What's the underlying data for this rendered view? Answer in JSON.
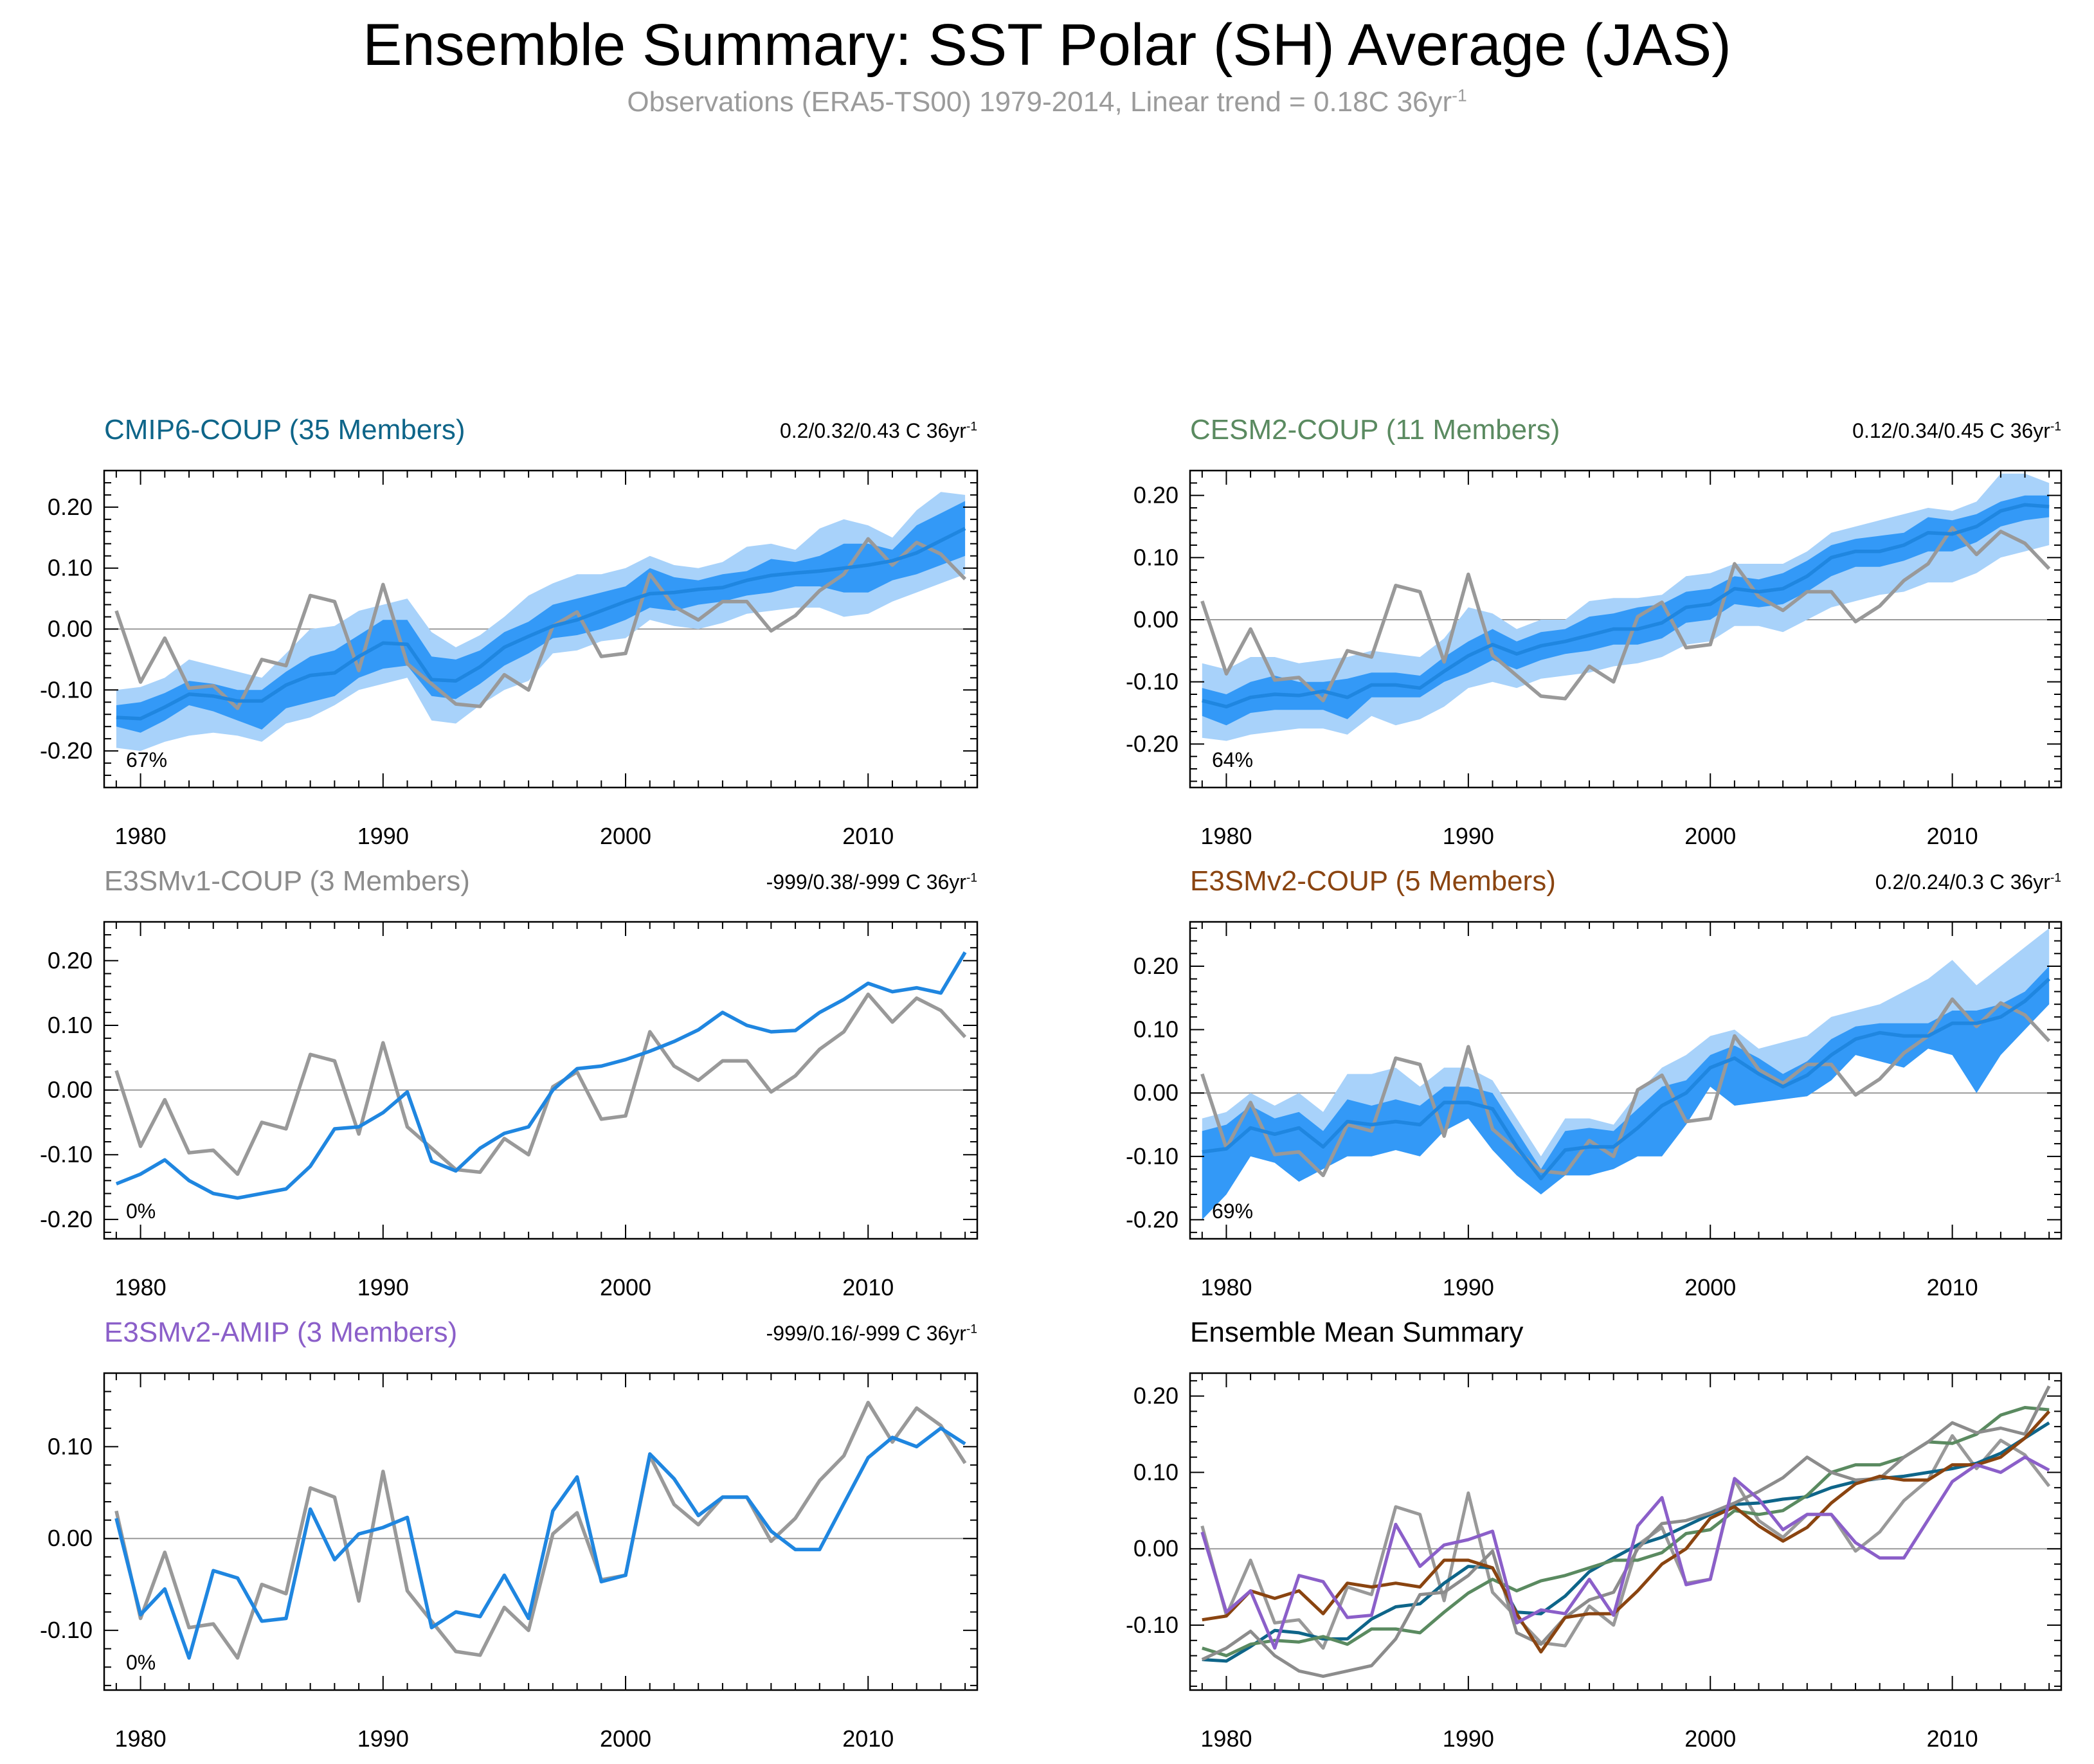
{
  "title": "Ensemble Summary: SST Polar (SH) Average (JAS)",
  "subtitle": {
    "text": "Observations (ERA5-TS00) 1979-2014, Linear trend = 0.18C 36yr",
    "sup": "-1"
  },
  "colors": {
    "obs": "#999999",
    "model_line": "#1f86e0",
    "band_outer": "#a8d2fa",
    "band_inner": "#3399f7",
    "cmip6": "#0e6589",
    "cesm2": "#5a8a60",
    "e3smv1": "#8c8c8c",
    "e3smv2_coup": "#8a4410",
    "e3smv2_amip": "#8b5fc9"
  },
  "chart_data": [
    {
      "type": "line",
      "id": "cmip6",
      "title": "CMIP6-COUP (35 Members)",
      "title_color": "#0e6589",
      "trend": "0.2/0.32/0.43 C 36yr",
      "trend_sup": "-1",
      "percent": "67%",
      "ylim": [
        -0.26,
        0.26
      ],
      "yticks": [
        "-0.20",
        "-0.10",
        "0.00",
        "0.10",
        "0.20"
      ],
      "ytick_values": [
        -0.2,
        -0.1,
        0.0,
        0.1,
        0.2
      ],
      "xticks": [
        "1980",
        "1990",
        "2000",
        "2010"
      ],
      "xtick_values": [
        1980,
        1990,
        2000,
        2010
      ],
      "xlim": [
        1978.5,
        2014.5
      ],
      "ensemble_mean": [
        -0.145,
        -0.147,
        -0.128,
        -0.107,
        -0.11,
        -0.118,
        -0.118,
        -0.092,
        -0.076,
        -0.072,
        -0.045,
        -0.023,
        -0.025,
        -0.083,
        -0.085,
        -0.062,
        -0.03,
        -0.012,
        0.005,
        0.015,
        0.03,
        0.045,
        0.058,
        0.06,
        0.065,
        0.068,
        0.08,
        0.088,
        0.092,
        0.095,
        0.1,
        0.105,
        0.112,
        0.125,
        0.145,
        0.165
      ],
      "inner_upper": [
        -0.125,
        -0.12,
        -0.105,
        -0.085,
        -0.09,
        -0.1,
        -0.1,
        -0.07,
        -0.045,
        -0.035,
        -0.01,
        0.015,
        0.015,
        -0.045,
        -0.05,
        -0.035,
        -0.005,
        0.012,
        0.04,
        0.05,
        0.06,
        0.07,
        0.1,
        0.085,
        0.08,
        0.09,
        0.095,
        0.115,
        0.11,
        0.12,
        0.14,
        0.14,
        0.13,
        0.17,
        0.19,
        0.21
      ],
      "inner_lower": [
        -0.16,
        -0.17,
        -0.15,
        -0.125,
        -0.135,
        -0.15,
        -0.165,
        -0.13,
        -0.12,
        -0.11,
        -0.08,
        -0.065,
        -0.06,
        -0.11,
        -0.115,
        -0.09,
        -0.06,
        -0.04,
        -0.015,
        -0.01,
        0.0,
        0.015,
        0.035,
        0.03,
        0.04,
        0.045,
        0.055,
        0.06,
        0.07,
        0.07,
        0.06,
        0.06,
        0.08,
        0.09,
        0.105,
        0.12
      ],
      "outer_upper": [
        -0.1,
        -0.095,
        -0.08,
        -0.05,
        -0.06,
        -0.07,
        -0.08,
        -0.04,
        0.0,
        0.005,
        0.03,
        0.04,
        0.05,
        -0.005,
        -0.03,
        -0.01,
        0.02,
        0.055,
        0.075,
        0.09,
        0.09,
        0.1,
        0.12,
        0.105,
        0.1,
        0.11,
        0.135,
        0.14,
        0.13,
        0.165,
        0.18,
        0.17,
        0.15,
        0.195,
        0.225,
        0.22
      ],
      "outer_lower": [
        -0.195,
        -0.2,
        -0.185,
        -0.175,
        -0.17,
        -0.175,
        -0.185,
        -0.155,
        -0.145,
        -0.125,
        -0.1,
        -0.09,
        -0.08,
        -0.15,
        -0.155,
        -0.125,
        -0.1,
        -0.085,
        -0.04,
        -0.035,
        -0.02,
        -0.015,
        0.015,
        0.005,
        0.0,
        0.01,
        0.025,
        0.03,
        0.035,
        0.035,
        0.02,
        0.025,
        0.045,
        0.06,
        0.075,
        0.09
      ],
      "observations": [
        0.03,
        -0.087,
        -0.015,
        -0.097,
        -0.093,
        -0.13,
        -0.05,
        -0.06,
        0.055,
        0.045,
        -0.068,
        0.073,
        -0.057,
        -0.09,
        -0.123,
        -0.127,
        -0.075,
        -0.1,
        0.005,
        0.028,
        -0.045,
        -0.04,
        0.09,
        0.037,
        0.015,
        0.045,
        0.045,
        -0.003,
        0.022,
        0.063,
        0.09,
        0.148,
        0.105,
        0.142,
        0.123,
        0.082
      ]
    },
    {
      "type": "line",
      "id": "cesm2",
      "title": "CESM2-COUP (11 Members)",
      "title_color": "#5a8a60",
      "trend": "0.12/0.34/0.45 C 36yr",
      "trend_sup": "-1",
      "percent": "64%",
      "ylim": [
        -0.27,
        0.24
      ],
      "yticks": [
        "-0.20",
        "-0.10",
        "0.00",
        "0.10",
        "0.20"
      ],
      "ytick_values": [
        -0.2,
        -0.1,
        0.0,
        0.1,
        0.2
      ],
      "xticks": [
        "1980",
        "1990",
        "2000",
        "2010"
      ],
      "xtick_values": [
        1980,
        1990,
        2000,
        2010
      ],
      "xlim": [
        1978.5,
        2014.5
      ],
      "ensemble_mean": [
        -0.13,
        -0.14,
        -0.125,
        -0.12,
        -0.122,
        -0.115,
        -0.125,
        -0.105,
        -0.105,
        -0.11,
        -0.083,
        -0.058,
        -0.04,
        -0.055,
        -0.042,
        -0.035,
        -0.025,
        -0.015,
        -0.015,
        -0.005,
        0.02,
        0.025,
        0.05,
        0.045,
        0.05,
        0.07,
        0.1,
        0.11,
        0.11,
        0.12,
        0.14,
        0.138,
        0.15,
        0.175,
        0.185,
        0.182
      ],
      "inner_upper": [
        -0.11,
        -0.12,
        -0.1,
        -0.09,
        -0.1,
        -0.1,
        -0.095,
        -0.085,
        -0.085,
        -0.09,
        -0.06,
        -0.035,
        -0.015,
        -0.035,
        -0.02,
        -0.015,
        0.005,
        0.01,
        0.02,
        0.025,
        0.045,
        0.05,
        0.07,
        0.065,
        0.075,
        0.095,
        0.12,
        0.13,
        0.135,
        0.14,
        0.165,
        0.16,
        0.17,
        0.19,
        0.2,
        0.2
      ],
      "inner_lower": [
        -0.155,
        -0.17,
        -0.15,
        -0.145,
        -0.145,
        -0.145,
        -0.16,
        -0.125,
        -0.125,
        -0.125,
        -0.1,
        -0.085,
        -0.065,
        -0.08,
        -0.065,
        -0.055,
        -0.05,
        -0.04,
        -0.04,
        -0.03,
        -0.005,
        0.0,
        0.025,
        0.02,
        0.025,
        0.045,
        0.07,
        0.085,
        0.085,
        0.095,
        0.11,
        0.11,
        0.125,
        0.15,
        0.16,
        0.165
      ],
      "outer_upper": [
        -0.07,
        -0.08,
        -0.06,
        -0.06,
        -0.07,
        -0.065,
        -0.06,
        -0.05,
        -0.055,
        -0.06,
        -0.03,
        0.02,
        0.01,
        -0.015,
        0.0,
        0.0,
        0.03,
        0.035,
        0.035,
        0.04,
        0.07,
        0.075,
        0.09,
        0.09,
        0.09,
        0.11,
        0.14,
        0.15,
        0.16,
        0.17,
        0.18,
        0.175,
        0.19,
        0.235,
        0.235,
        0.22
      ],
      "outer_lower": [
        -0.19,
        -0.195,
        -0.185,
        -0.18,
        -0.175,
        -0.175,
        -0.185,
        -0.155,
        -0.17,
        -0.16,
        -0.14,
        -0.11,
        -0.1,
        -0.11,
        -0.095,
        -0.09,
        -0.085,
        -0.075,
        -0.07,
        -0.06,
        -0.04,
        -0.035,
        -0.01,
        -0.01,
        -0.02,
        0.0,
        0.02,
        0.03,
        0.04,
        0.045,
        0.06,
        0.06,
        0.075,
        0.1,
        0.11,
        0.12
      ],
      "observations": [
        0.03,
        -0.087,
        -0.015,
        -0.097,
        -0.093,
        -0.13,
        -0.05,
        -0.06,
        0.055,
        0.045,
        -0.068,
        0.073,
        -0.057,
        -0.09,
        -0.123,
        -0.127,
        -0.075,
        -0.1,
        0.005,
        0.028,
        -0.045,
        -0.04,
        0.09,
        0.037,
        0.015,
        0.045,
        0.045,
        -0.003,
        0.022,
        0.063,
        0.09,
        0.148,
        0.105,
        0.142,
        0.123,
        0.082
      ]
    },
    {
      "type": "line",
      "id": "e3smv1",
      "title": "E3SMv1-COUP (3 Members)",
      "title_color": "#8c8c8c",
      "trend": "-999/0.38/-999 C 36yr",
      "trend_sup": "-1",
      "percent": "0%",
      "ylim": [
        -0.23,
        0.26
      ],
      "yticks": [
        "-0.20",
        "-0.10",
        "0.00",
        "0.10",
        "0.20"
      ],
      "ytick_values": [
        -0.2,
        -0.1,
        0.0,
        0.1,
        0.2
      ],
      "xticks": [
        "1980",
        "1990",
        "2000",
        "2010"
      ],
      "xtick_values": [
        1980,
        1990,
        2000,
        2010
      ],
      "xlim": [
        1978.5,
        2014.5
      ],
      "ensemble_mean": [
        -0.145,
        -0.13,
        -0.108,
        -0.14,
        -0.16,
        -0.167,
        -0.16,
        -0.153,
        -0.118,
        -0.06,
        -0.057,
        -0.035,
        -0.003,
        -0.11,
        -0.125,
        -0.09,
        -0.067,
        -0.057,
        0.0,
        0.033,
        0.037,
        0.047,
        0.06,
        0.075,
        0.093,
        0.12,
        0.1,
        0.09,
        0.092,
        0.12,
        0.14,
        0.165,
        0.152,
        0.158,
        0.15,
        0.213
      ],
      "observations": [
        0.03,
        -0.087,
        -0.015,
        -0.097,
        -0.093,
        -0.13,
        -0.05,
        -0.06,
        0.055,
        0.045,
        -0.068,
        0.073,
        -0.057,
        -0.09,
        -0.123,
        -0.127,
        -0.075,
        -0.1,
        0.005,
        0.028,
        -0.045,
        -0.04,
        0.09,
        0.037,
        0.015,
        0.045,
        0.045,
        -0.003,
        0.022,
        0.063,
        0.09,
        0.148,
        0.105,
        0.142,
        0.123,
        0.082
      ]
    },
    {
      "type": "line",
      "id": "e3smv2_coup",
      "title": "E3SMv2-COUP (5 Members)",
      "title_color": "#8a4410",
      "trend": "0.2/0.24/0.3 C 36yr",
      "trend_sup": "-1",
      "percent": "69%",
      "ylim": [
        -0.23,
        0.27
      ],
      "yticks": [
        "-0.20",
        "-0.10",
        "0.00",
        "0.10",
        "0.20"
      ],
      "ytick_values": [
        -0.2,
        -0.1,
        0.0,
        0.1,
        0.2
      ],
      "xticks": [
        "1980",
        "1990",
        "2000",
        "2010"
      ],
      "xtick_values": [
        1980,
        1990,
        2000,
        2010
      ],
      "xlim": [
        1978.5,
        2014.5
      ],
      "ensemble_mean": [
        -0.093,
        -0.088,
        -0.055,
        -0.065,
        -0.055,
        -0.085,
        -0.045,
        -0.05,
        -0.045,
        -0.05,
        -0.015,
        -0.015,
        -0.025,
        -0.085,
        -0.135,
        -0.09,
        -0.085,
        -0.085,
        -0.055,
        -0.02,
        0.0,
        0.04,
        0.055,
        0.03,
        0.01,
        0.028,
        0.06,
        0.085,
        0.095,
        0.09,
        0.09,
        0.11,
        0.11,
        0.12,
        0.145,
        0.18
      ],
      "inner_upper": [
        -0.06,
        -0.05,
        -0.02,
        -0.04,
        -0.03,
        -0.06,
        -0.01,
        -0.02,
        -0.01,
        -0.02,
        0.01,
        0.01,
        0.0,
        -0.06,
        -0.12,
        -0.06,
        -0.055,
        -0.06,
        -0.025,
        0.01,
        0.02,
        0.06,
        0.075,
        0.055,
        0.03,
        0.05,
        0.085,
        0.105,
        0.11,
        0.11,
        0.11,
        0.13,
        0.13,
        0.14,
        0.16,
        0.2
      ],
      "inner_lower": [
        -0.2,
        -0.16,
        -0.1,
        -0.11,
        -0.14,
        -0.12,
        -0.1,
        -0.1,
        -0.09,
        -0.1,
        -0.06,
        -0.04,
        -0.09,
        -0.13,
        -0.16,
        -0.13,
        -0.13,
        -0.12,
        -0.1,
        -0.1,
        -0.05,
        0.01,
        -0.02,
        -0.015,
        -0.01,
        -0.005,
        0.02,
        0.06,
        0.05,
        0.04,
        0.07,
        0.06,
        0.0,
        0.06,
        0.1,
        0.14
      ],
      "outer_upper": [
        -0.04,
        -0.03,
        0.0,
        -0.02,
        0.0,
        -0.03,
        0.03,
        0.03,
        0.04,
        0.01,
        0.04,
        0.04,
        0.02,
        -0.04,
        -0.1,
        -0.04,
        -0.04,
        -0.05,
        0.0,
        0.04,
        0.06,
        0.09,
        0.1,
        0.07,
        0.08,
        0.09,
        0.12,
        0.13,
        0.14,
        0.16,
        0.18,
        0.21,
        0.17,
        0.2,
        0.23,
        0.26
      ],
      "outer_lower": [
        -0.2,
        -0.16,
        -0.1,
        -0.11,
        -0.14,
        -0.12,
        -0.1,
        -0.1,
        -0.09,
        -0.1,
        -0.06,
        -0.04,
        -0.09,
        -0.13,
        -0.16,
        -0.13,
        -0.13,
        -0.12,
        -0.1,
        -0.1,
        -0.05,
        0.01,
        -0.02,
        -0.015,
        -0.01,
        -0.005,
        0.02,
        0.06,
        0.05,
        0.04,
        0.07,
        0.06,
        0.0,
        0.06,
        0.1,
        0.14
      ],
      "observations": [
        0.03,
        -0.087,
        -0.015,
        -0.097,
        -0.093,
        -0.13,
        -0.05,
        -0.06,
        0.055,
        0.045,
        -0.068,
        0.073,
        -0.057,
        -0.09,
        -0.123,
        -0.127,
        -0.075,
        -0.1,
        0.005,
        0.028,
        -0.045,
        -0.04,
        0.09,
        0.037,
        0.015,
        0.045,
        0.045,
        -0.003,
        0.022,
        0.063,
        0.09,
        0.148,
        0.105,
        0.142,
        0.123,
        0.082
      ]
    },
    {
      "type": "line",
      "id": "e3smv2_amip",
      "title": "E3SMv2-AMIP (3 Members)",
      "title_color": "#8b5fc9",
      "trend": "-999/0.16/-999 C 36yr",
      "trend_sup": "-1",
      "percent": "0%",
      "ylim": [
        -0.165,
        0.18
      ],
      "yticks": [
        "-0.10",
        "0.00",
        "0.10"
      ],
      "ytick_values": [
        -0.1,
        0.0,
        0.1
      ],
      "xticks": [
        "1980",
        "1990",
        "2000",
        "2010"
      ],
      "xtick_values": [
        1980,
        1990,
        2000,
        2010
      ],
      "xlim": [
        1978.5,
        2014.5
      ],
      "ensemble_mean": [
        0.022,
        -0.083,
        -0.055,
        -0.13,
        -0.035,
        -0.043,
        -0.09,
        -0.087,
        0.032,
        -0.023,
        0.005,
        0.012,
        0.023,
        -0.097,
        -0.08,
        -0.085,
        -0.04,
        -0.087,
        0.03,
        0.067,
        -0.047,
        -0.04,
        0.092,
        0.065,
        0.025,
        0.045,
        0.045,
        0.008,
        -0.012,
        -0.012,
        0.038,
        0.088,
        0.11,
        0.1,
        0.12,
        0.103
      ],
      "observations": [
        0.03,
        -0.087,
        -0.015,
        -0.097,
        -0.093,
        -0.13,
        -0.05,
        -0.06,
        0.055,
        0.045,
        -0.068,
        0.073,
        -0.057,
        -0.09,
        -0.123,
        -0.127,
        -0.075,
        -0.1,
        0.005,
        0.028,
        -0.045,
        -0.04,
        0.09,
        0.037,
        0.015,
        0.045,
        0.045,
        -0.003,
        0.022,
        0.063,
        0.09,
        0.148,
        0.105,
        0.142,
        0.123,
        0.082
      ]
    },
    {
      "type": "line",
      "id": "ensemble_mean_summary",
      "title": "Ensemble Mean Summary",
      "title_color": "#000000",
      "ylim": [
        -0.185,
        0.23
      ],
      "yticks": [
        "-0.10",
        "0.00",
        "0.10",
        "0.20"
      ],
      "ytick_values": [
        -0.1,
        0.0,
        0.1,
        0.2
      ],
      "xticks": [
        "1980",
        "1990",
        "2000",
        "2010"
      ],
      "xtick_values": [
        1980,
        1990,
        2000,
        2010
      ],
      "xlim": [
        1978.5,
        2014.5
      ],
      "series_ref": [
        "cmip6",
        "cesm2",
        "e3smv1",
        "e3smv2_coup",
        "e3smv2_amip"
      ]
    }
  ]
}
